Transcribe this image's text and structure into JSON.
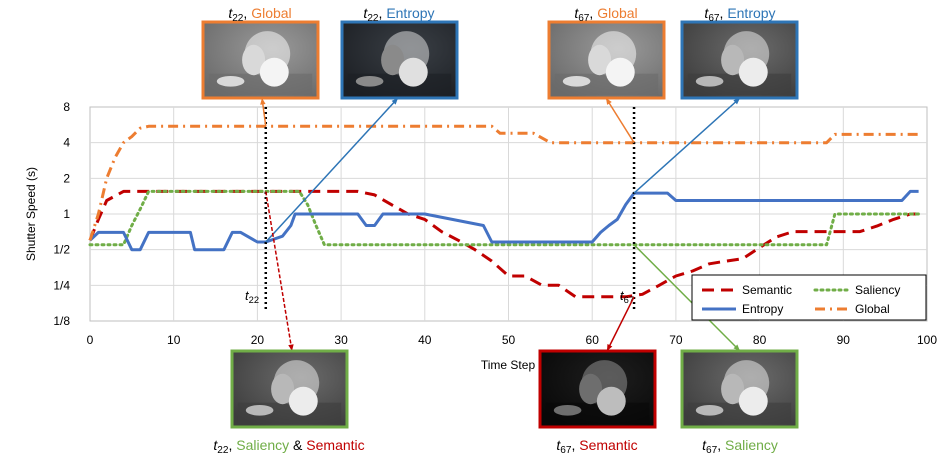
{
  "chart_data": {
    "type": "line",
    "xlabel": "Time Step",
    "ylabel": "Shutter Speed (s)",
    "xlim": [
      0,
      100
    ],
    "ylim": [
      0.125,
      8
    ],
    "y_scale": "log2",
    "grid": true,
    "legend_position": "bottom-right",
    "x_ticks": [
      "0",
      "10",
      "20",
      "30",
      "40",
      "50",
      "60",
      "70",
      "80",
      "90",
      "100"
    ],
    "y_ticks": [
      {
        "value": 8,
        "label": "8"
      },
      {
        "value": 4,
        "label": "4"
      },
      {
        "value": 2,
        "label": "2"
      },
      {
        "value": 1,
        "label": "1"
      },
      {
        "value": 0.5,
        "label": "1/2"
      },
      {
        "value": 0.25,
        "label": "1/4"
      },
      {
        "value": 0.125,
        "label": "1/8"
      }
    ],
    "series": [
      {
        "name": "Semantic",
        "color": "#c00000",
        "style": "dashed",
        "x": [
          0,
          1,
          2,
          4,
          32,
          34,
          36,
          38,
          40,
          42,
          44,
          46,
          48,
          50,
          52,
          54,
          56,
          58,
          60,
          62,
          64,
          66,
          68,
          70,
          72,
          74,
          76,
          78,
          80,
          82,
          84,
          86,
          88,
          90,
          92,
          94,
          96,
          98,
          99
        ],
        "y": [
          0.6,
          0.9,
          1.3,
          1.55,
          1.55,
          1.45,
          1.2,
          1.0,
          0.9,
          0.71,
          0.6,
          0.5,
          0.4,
          0.3,
          0.3,
          0.25,
          0.25,
          0.2,
          0.2,
          0.2,
          0.2,
          0.21,
          0.25,
          0.3,
          0.33,
          0.38,
          0.4,
          0.42,
          0.52,
          0.64,
          0.71,
          0.71,
          0.71,
          0.71,
          0.71,
          0.79,
          0.9,
          1.0,
          1.0
        ]
      },
      {
        "name": "Saliency",
        "color": "#70ad47",
        "style": "dotted",
        "x": [
          0,
          4,
          5,
          6,
          7,
          25,
          26,
          27,
          28,
          75,
          76,
          84,
          85,
          88,
          89,
          99
        ],
        "y": [
          0.55,
          0.55,
          0.8,
          1.1,
          1.55,
          1.55,
          1.2,
          0.8,
          0.55,
          0.55,
          0.55,
          0.55,
          0.55,
          0.55,
          1.0,
          1.0
        ]
      },
      {
        "name": "Entropy",
        "color": "#4472c4",
        "style": "solid",
        "x": [
          0,
          1,
          4,
          5,
          6,
          7,
          12,
          12.5,
          14,
          15,
          16,
          17,
          18,
          20,
          20.5,
          21,
          23,
          24,
          24.5,
          27,
          29,
          30,
          31,
          32,
          33,
          34,
          35,
          40,
          47,
          48,
          49,
          59,
          60,
          61,
          62,
          63,
          64,
          65,
          66,
          69,
          70,
          97,
          98,
          99
        ],
        "y": [
          0.6,
          0.7,
          0.7,
          0.5,
          0.5,
          0.7,
          0.7,
          0.5,
          0.5,
          0.5,
          0.5,
          0.7,
          0.7,
          0.58,
          0.58,
          0.58,
          0.65,
          0.8,
          1.0,
          1.0,
          1.0,
          1.0,
          1.0,
          1.0,
          0.8,
          0.8,
          1.0,
          1.0,
          0.8,
          0.58,
          0.58,
          0.58,
          0.58,
          0.7,
          0.8,
          0.9,
          1.2,
          1.5,
          1.5,
          1.5,
          1.3,
          1.3,
          1.55,
          1.55
        ]
      },
      {
        "name": "Global",
        "color": "#ed7d31",
        "style": "dashdot",
        "x": [
          0,
          1,
          2,
          3,
          4,
          5,
          6,
          7,
          48,
          49,
          52,
          53,
          55,
          56,
          88,
          89,
          99
        ],
        "y": [
          0.6,
          1.0,
          2.0,
          3.0,
          4.0,
          4.5,
          5.3,
          5.5,
          5.5,
          4.8,
          4.8,
          4.8,
          4.0,
          4.0,
          4.0,
          4.7,
          4.7
        ]
      }
    ],
    "annotations": [
      {
        "time_step": "t22",
        "x": 21
      },
      {
        "time_step": "t67",
        "x": 65
      }
    ]
  },
  "markers": [
    {
      "name": "t22",
      "base": "t",
      "sub": "22"
    },
    {
      "name": "t67",
      "base": "t",
      "sub": "67"
    }
  ],
  "thumbnails": [
    {
      "base": "t",
      "sub": "22",
      "parts": [
        {
          "text": ", ",
          "color": "#000000"
        },
        {
          "text": "Global",
          "color": "#ed7d31"
        }
      ],
      "border": "#ed7d31",
      "tone": "bright"
    },
    {
      "base": "t",
      "sub": "22",
      "parts": [
        {
          "text": ", ",
          "color": "#000000"
        },
        {
          "text": "Entropy",
          "color": "#2e75b6"
        }
      ],
      "border": "#2e75b6",
      "tone": "dim"
    },
    {
      "base": "t",
      "sub": "67",
      "parts": [
        {
          "text": ", ",
          "color": "#000000"
        },
        {
          "text": "Global",
          "color": "#ed7d31"
        }
      ],
      "border": "#ed7d31",
      "tone": "bright"
    },
    {
      "base": "t",
      "sub": "67",
      "parts": [
        {
          "text": ", ",
          "color": "#000000"
        },
        {
          "text": "Entropy",
          "color": "#2e75b6"
        }
      ],
      "border": "#2e75b6",
      "tone": "mid"
    },
    {
      "base": "t",
      "sub": "22",
      "parts": [
        {
          "text": ", ",
          "color": "#000000"
        },
        {
          "text": "Saliency",
          "color": "#70ad47"
        },
        {
          "text": " & ",
          "color": "#000000"
        },
        {
          "text": "Semantic",
          "color": "#c00000"
        }
      ],
      "border": "#70ad47",
      "tone": "mid"
    },
    {
      "base": "t",
      "sub": "67",
      "parts": [
        {
          "text": ", ",
          "color": "#000000"
        },
        {
          "text": "Semantic",
          "color": "#c00000"
        }
      ],
      "border": "#c00000",
      "tone": "dark"
    },
    {
      "base": "t",
      "sub": "67",
      "parts": [
        {
          "text": ", ",
          "color": "#000000"
        },
        {
          "text": "Saliency",
          "color": "#70ad47"
        }
      ],
      "border": "#70ad47",
      "tone": "mid"
    }
  ]
}
